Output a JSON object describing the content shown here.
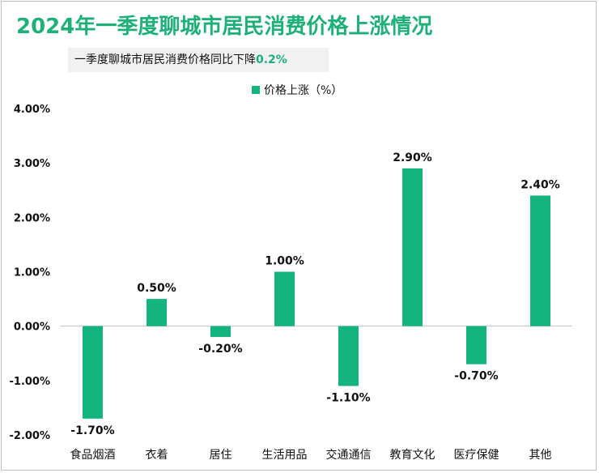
{
  "title": "2024年一季度聊城市居民消费价格上涨情况",
  "subtitle": {
    "prefix": "一季度聊城市居民消费价格同比下降",
    "highlight": "0.2%"
  },
  "colors": {
    "bar": "#13b47e",
    "title": "#1fb079",
    "axis": "#bfbfbf"
  },
  "chart_data": {
    "type": "bar",
    "legend": {
      "label": "价格上涨（%）",
      "placement": "top"
    },
    "categories": [
      "食品烟酒",
      "衣着",
      "居住",
      "生活用品",
      "交通通信",
      "教育文化",
      "医疗保健",
      "其他"
    ],
    "series": [
      {
        "name": "价格上涨（%）",
        "values": [
          -1.7,
          0.5,
          -0.2,
          1.0,
          -1.1,
          2.9,
          -0.7,
          2.4
        ],
        "labels": [
          "-1.70%",
          "0.50%",
          "-0.20%",
          "1.00%",
          "-1.10%",
          "2.90%",
          "-0.70%",
          "2.40%"
        ]
      }
    ],
    "yticks": [
      {
        "value": 4,
        "label": "4.00%"
      },
      {
        "value": 3,
        "label": "3.00%"
      },
      {
        "value": 2,
        "label": "2.00%"
      },
      {
        "value": 1,
        "label": "1.00%"
      },
      {
        "value": 0,
        "label": "0.00%"
      },
      {
        "value": -1,
        "label": "-1.00%"
      },
      {
        "value": -2,
        "label": "-2.00%"
      }
    ],
    "ylim": [
      -2,
      4
    ],
    "grid": false
  }
}
